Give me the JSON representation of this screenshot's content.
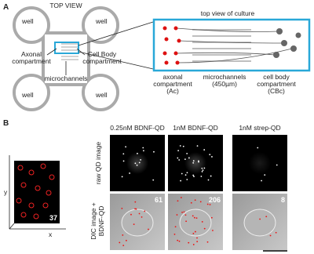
{
  "panel_a": {
    "label": "A",
    "title": "TOP VIEW",
    "wells": [
      "well",
      "well",
      "well",
      "well"
    ],
    "axonal": [
      "Axonal",
      "compartment"
    ],
    "cell_body": [
      "Cell Body",
      "compartment"
    ],
    "microchannels": "microchannels",
    "culture_title": "top view of culture",
    "regions": [
      [
        "axonal",
        "compartment",
        "(Ac)"
      ],
      [
        "microchannels",
        "(450µm)"
      ],
      [
        "cell body",
        "compartment",
        "(CBc)"
      ]
    ]
  },
  "panel_b": {
    "label": "B",
    "y_axis": "y",
    "x_axis": "x",
    "track_count": 37,
    "columns": [
      "0.25nM BDNF-QD",
      "1nM BDNF-QD",
      "1nM strep-QD"
    ],
    "rows": [
      "raw QD image",
      [
        "DIC image +",
        "BDNF-QD"
      ]
    ],
    "counts": [
      61,
      206,
      8
    ]
  }
}
